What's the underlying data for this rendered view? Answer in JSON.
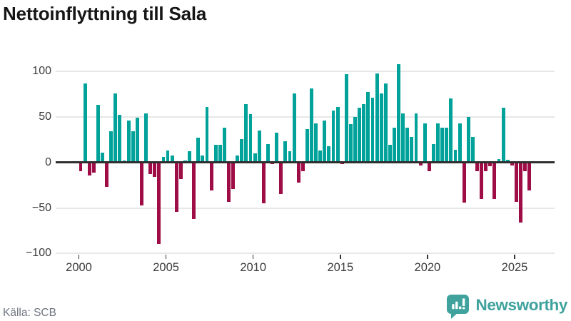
{
  "title": "Nettoinflyttning till Sala",
  "source": "Källa: SCB",
  "branding": {
    "name": "Newsworthy",
    "icon": "newsworthy-bubble-chart-icon"
  },
  "colors": {
    "positive_bar": "#00a29a",
    "negative_bar": "#9e0d46",
    "brand_teal": "#3fa29d",
    "zero_line": "#2e2e2e",
    "gridline": "#e7e7e7",
    "axis_text": "#3b3b3b"
  },
  "chart_data": {
    "type": "bar",
    "title": "Nettoinflyttning till Sala",
    "x_unit": "quarter",
    "start_year": 2000,
    "end_year": 2025,
    "grid": "horizontal",
    "legend": "none",
    "ylim": [
      -100,
      110
    ],
    "y_ticks": [
      100,
      50,
      0,
      -50,
      -100
    ],
    "y_tick_labels": [
      "100",
      "50",
      "0",
      "−50",
      "−100"
    ],
    "x_tick_years": [
      2000,
      2005,
      2010,
      2015,
      2020,
      2025
    ],
    "x_tick_labels": [
      "2000",
      "2005",
      "2010",
      "2015",
      "2020",
      "2025"
    ],
    "color_rule": "positive values teal, negative values dark red",
    "values": [
      -10,
      87,
      -14,
      -11,
      63,
      11,
      -27,
      34,
      76,
      52,
      2,
      46,
      34,
      49,
      -47,
      54,
      -13,
      -16,
      -90,
      6,
      13,
      8,
      -54,
      -18,
      2,
      12,
      -62,
      27,
      8,
      61,
      -31,
      19,
      19,
      38,
      -43,
      -29,
      8,
      26,
      64,
      53,
      10,
      35,
      -45,
      20,
      -2,
      33,
      -35,
      23,
      12,
      76,
      -22,
      -10,
      37,
      81,
      43,
      13,
      46,
      18,
      57,
      61,
      -2,
      97,
      42,
      50,
      60,
      64,
      77,
      71,
      98,
      76,
      87,
      19,
      38,
      108,
      54,
      38,
      28,
      54,
      -3,
      43,
      -10,
      20,
      43,
      38,
      38,
      70,
      14,
      43,
      -44,
      50,
      28,
      -10,
      -40,
      -10,
      -4,
      -40,
      4,
      60,
      3,
      -3,
      -43,
      -66,
      -10,
      -31
    ]
  }
}
